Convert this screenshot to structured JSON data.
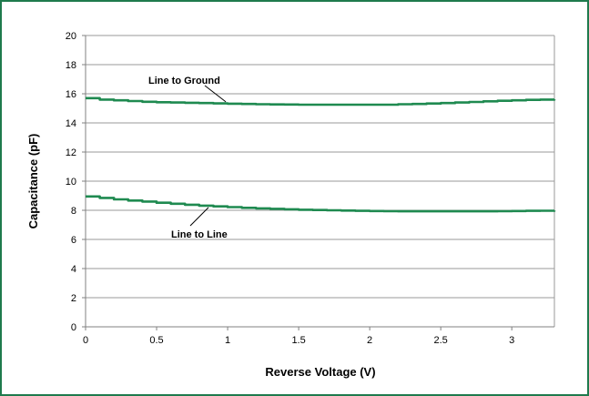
{
  "colors": {
    "frame": "#1f7a4d",
    "series": "#1f8a50",
    "grid": "#9a9a9a",
    "axis": "#808080"
  },
  "chart_data": {
    "type": "line",
    "title": "",
    "xlabel": "Reverse Voltage (V)",
    "ylabel": "Capacitance (pF)",
    "xlim": [
      0,
      3.3
    ],
    "ylim": [
      0,
      20
    ],
    "x_ticks": [
      "0",
      "0.5",
      "1",
      "1.5",
      "2",
      "2.5",
      "3"
    ],
    "y_ticks": [
      "0",
      "2",
      "4",
      "6",
      "8",
      "10",
      "12",
      "14",
      "16",
      "18",
      "20"
    ],
    "grid": "horizontal",
    "legend": "none",
    "series": [
      {
        "name": "Line to Ground",
        "x": [
          0,
          0.1,
          0.2,
          0.3,
          0.4,
          0.5,
          0.6,
          0.7,
          0.8,
          0.9,
          1.0,
          1.1,
          1.2,
          1.3,
          1.4,
          1.5,
          1.6,
          1.7,
          1.8,
          1.9,
          2.0,
          2.1,
          2.2,
          2.3,
          2.4,
          2.5,
          2.6,
          2.7,
          2.8,
          2.9,
          3.0,
          3.1,
          3.2,
          3.3
        ],
        "y": [
          15.7,
          15.6,
          15.55,
          15.5,
          15.45,
          15.42,
          15.4,
          15.38,
          15.36,
          15.34,
          15.32,
          15.3,
          15.28,
          15.27,
          15.26,
          15.25,
          15.25,
          15.25,
          15.25,
          15.25,
          15.25,
          15.25,
          15.28,
          15.3,
          15.33,
          15.36,
          15.4,
          15.44,
          15.48,
          15.52,
          15.55,
          15.58,
          15.6,
          15.62
        ]
      },
      {
        "name": "Line to Line",
        "x": [
          0,
          0.1,
          0.2,
          0.3,
          0.4,
          0.5,
          0.6,
          0.7,
          0.8,
          0.9,
          1.0,
          1.1,
          1.2,
          1.3,
          1.4,
          1.5,
          1.6,
          1.7,
          1.8,
          1.9,
          2.0,
          2.1,
          2.2,
          2.3,
          2.4,
          2.5,
          2.6,
          2.7,
          2.8,
          2.9,
          3.0,
          3.1,
          3.2,
          3.3
        ],
        "y": [
          8.95,
          8.85,
          8.75,
          8.67,
          8.6,
          8.52,
          8.45,
          8.38,
          8.32,
          8.27,
          8.22,
          8.17,
          8.13,
          8.1,
          8.07,
          8.04,
          8.02,
          8.0,
          7.98,
          7.96,
          7.95,
          7.94,
          7.93,
          7.93,
          7.93,
          7.93,
          7.93,
          7.93,
          7.93,
          7.94,
          7.95,
          7.96,
          7.97,
          7.98
        ]
      }
    ],
    "annotations": [
      {
        "text": "Line to Ground",
        "series": 0,
        "at_x": 1.0
      },
      {
        "text": "Line to Line",
        "series": 1,
        "at_x": 0.85
      }
    ]
  }
}
